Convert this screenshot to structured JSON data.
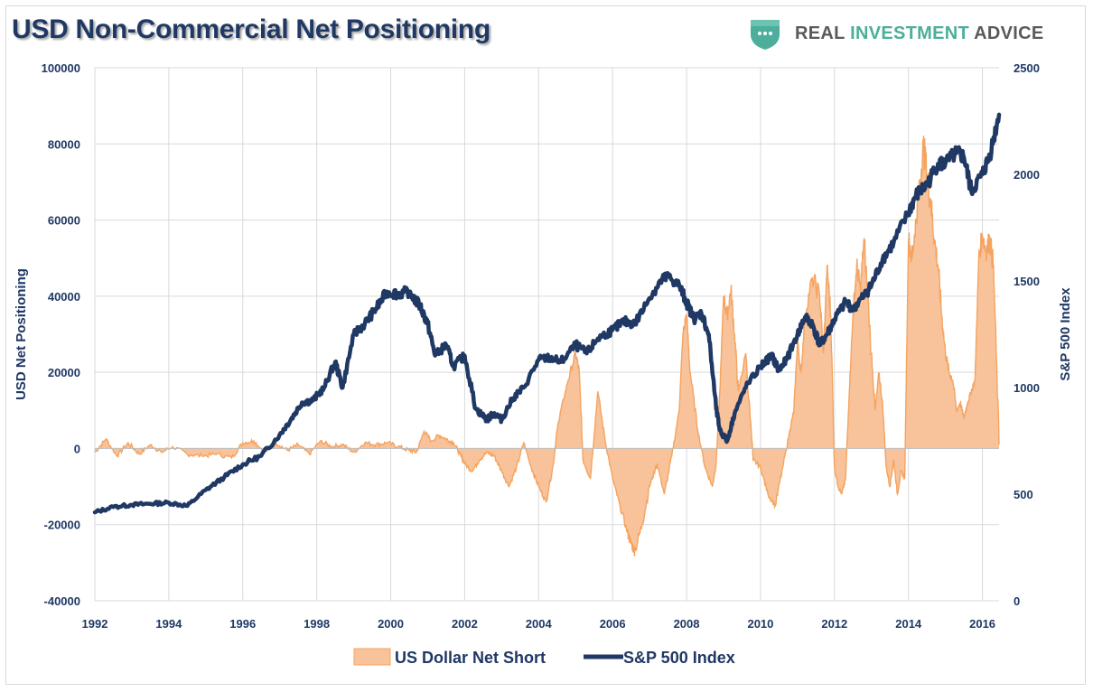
{
  "title": "USD Non-Commercial Net Positioning",
  "brand": {
    "name_part1": "REAL ",
    "name_part2": "INVESTMENT",
    "name_part3": " ADVICE",
    "logo_icon": "shield-dots-icon",
    "accent_color": "#4cae9b"
  },
  "colors": {
    "sp500": "#1f3864",
    "usd": "#f4a460",
    "usd_fill": "#f8c29a",
    "grid": "#d9d9d9",
    "text": "#1f3864"
  },
  "chart_data": {
    "type": "line+area",
    "title": "USD Non-Commercial Net Positioning",
    "xlabel": "",
    "ylabel_left": "USD Net Positioning",
    "ylabel_right": "S&P 500 Index",
    "xlim": [
      1992,
      2016.45
    ],
    "ylim_left": [
      -40000,
      100000
    ],
    "ylim_right": [
      0,
      2500
    ],
    "x_ticks": [
      1992,
      1994,
      1996,
      1998,
      2000,
      2002,
      2004,
      2006,
      2008,
      2010,
      2012,
      2014,
      2016
    ],
    "x_tick_labels": [
      "1992",
      "1994",
      "1996",
      "1998",
      "2000",
      "2002",
      "2004",
      "2006",
      "2008",
      "2010",
      "2012",
      "2014",
      "2016"
    ],
    "y_left_ticks": [
      -40000,
      -20000,
      0,
      20000,
      40000,
      60000,
      80000,
      100000
    ],
    "y_left_tick_labels": [
      "-40000",
      "-20000",
      "0",
      "20000",
      "40000",
      "60000",
      "80000",
      "100000"
    ],
    "y_right_ticks": [
      0,
      500,
      1000,
      1500,
      2000,
      2500
    ],
    "y_right_tick_labels": [
      "0",
      "500",
      "1000",
      "1500",
      "2000",
      "2500"
    ],
    "grid": true,
    "legend": {
      "position": "bottom-center",
      "entries": [
        "US Dollar Net Short",
        "S&P 500 Index"
      ]
    },
    "series": [
      {
        "name": "US Dollar Net Short",
        "type": "area",
        "axis": "left",
        "x": [
          1992,
          1992.3,
          1992.6,
          1992.9,
          1993.2,
          1993.5,
          1993.8,
          1994.1,
          1994.5,
          1994.9,
          1995.3,
          1995.7,
          1996,
          1996.3,
          1996.6,
          1996.9,
          1997.2,
          1997.5,
          1997.8,
          1998.1,
          1998.4,
          1998.7,
          1999,
          1999.3,
          1999.6,
          1999.9,
          2000.2,
          2000.5,
          2000.7,
          2000.9,
          2001.1,
          2001.3,
          2001.5,
          2001.7,
          2001.9,
          2002,
          2002.2,
          2002.4,
          2002.6,
          2002.8,
          2003,
          2003.2,
          2003.4,
          2003.6,
          2003.8,
          2004,
          2004.2,
          2004.4,
          2004.5,
          2004.6,
          2004.8,
          2005,
          2005.1,
          2005.2,
          2005.4,
          2005.6,
          2005.8,
          2006,
          2006.2,
          2006.4,
          2006.5,
          2006.6,
          2006.8,
          2007,
          2007.2,
          2007.4,
          2007.6,
          2007.8,
          2007.9,
          2008,
          2008.1,
          2008.3,
          2008.5,
          2008.7,
          2008.8,
          2008.9,
          2009,
          2009.1,
          2009.2,
          2009.3,
          2009.4,
          2009.6,
          2009.8,
          2010,
          2010.2,
          2010.4,
          2010.6,
          2010.8,
          2010.9,
          2011,
          2011.1,
          2011.2,
          2011.4,
          2011.6,
          2011.7,
          2011.8,
          2011.9,
          2012,
          2012.1,
          2012.2,
          2012.3,
          2012.4,
          2012.5,
          2012.6,
          2012.7,
          2012.8,
          2013,
          2013.1,
          2013.2,
          2013.3,
          2013.4,
          2013.5,
          2013.6,
          2013.7,
          2013.8,
          2013.9,
          2014,
          2014.1,
          2014.2,
          2014.3,
          2014.4,
          2014.5,
          2014.6,
          2014.7,
          2014.8,
          2014.9,
          2015,
          2015.1,
          2015.2,
          2015.3,
          2015.4,
          2015.5,
          2015.6,
          2015.7,
          2015.8,
          2015.9,
          2016,
          2016.1,
          2016.2,
          2016.3,
          2016.45
        ],
        "y": [
          -1000,
          2500,
          -2000,
          1500,
          -1500,
          1000,
          -1000,
          500,
          -1500,
          -2000,
          -1500,
          -2500,
          1500,
          2000,
          -1000,
          1500,
          -500,
          1000,
          -1500,
          2000,
          500,
          1000,
          -1000,
          1500,
          1000,
          1500,
          500,
          -500,
          -1000,
          4500,
          2000,
          3500,
          2500,
          1500,
          -2000,
          -4000,
          -6000,
          -3000,
          -1000,
          -2000,
          -6000,
          -10000,
          -5000,
          1500,
          -5000,
          -10000,
          -14000,
          -4000,
          5000,
          10000,
          18000,
          25000,
          20000,
          -3000,
          -8000,
          15000,
          2000,
          -8000,
          -15000,
          -22000,
          -25000,
          -27000,
          -20000,
          -10000,
          -4000,
          -12000,
          -2000,
          10000,
          30000,
          35000,
          20000,
          5000,
          -5000,
          -10000,
          -4000,
          15000,
          40000,
          35000,
          42000,
          30000,
          15000,
          25000,
          -3000,
          -5000,
          -12000,
          -15000,
          -5000,
          5000,
          10000,
          28000,
          20000,
          35000,
          45000,
          40000,
          25000,
          48000,
          35000,
          -5000,
          -10000,
          -12000,
          -8000,
          15000,
          35000,
          48000,
          42000,
          55000,
          25000,
          10000,
          20000,
          12000,
          -5000,
          -10000,
          -3000,
          -12000,
          -6000,
          -8000,
          55000,
          50000,
          60000,
          68000,
          80000,
          72000,
          65000,
          55000,
          48000,
          35000,
          25000,
          20000,
          18000,
          10000,
          12000,
          8000,
          12000,
          15000,
          18000,
          50000,
          56000,
          52000,
          55000,
          48000,
          1000
        ]
      },
      {
        "name": "S&P 500 Index",
        "type": "line",
        "axis": "right",
        "x": [
          1992,
          1992.5,
          1993,
          1993.5,
          1994,
          1994.5,
          1995,
          1995.5,
          1996,
          1996.5,
          1997,
          1997.3,
          1997.6,
          1997.9,
          1998.2,
          1998.5,
          1998.7,
          1999,
          1999.3,
          1999.6,
          1999.9,
          2000.2,
          2000.5,
          2000.8,
          2001,
          2001.2,
          2001.5,
          2001.7,
          2002,
          2002.3,
          2002.6,
          2002.8,
          2003,
          2003.3,
          2003.6,
          2004,
          2004.3,
          2004.6,
          2005,
          2005.3,
          2005.6,
          2006,
          2006.3,
          2006.6,
          2007,
          2007.3,
          2007.5,
          2007.8,
          2008,
          2008.2,
          2008.4,
          2008.6,
          2008.8,
          2008.9,
          2009.1,
          2009.3,
          2009.6,
          2010,
          2010.3,
          2010.5,
          2010.7,
          2011,
          2011.2,
          2011.4,
          2011.6,
          2011.8,
          2012,
          2012.3,
          2012.5,
          2012.8,
          2013,
          2013.3,
          2013.6,
          2014,
          2014.2,
          2014.5,
          2014.8,
          2015,
          2015.3,
          2015.5,
          2015.7,
          2016,
          2016.2,
          2016.45
        ],
        "y": [
          415,
          440,
          450,
          455,
          460,
          445,
          520,
          580,
          640,
          680,
          780,
          850,
          930,
          940,
          1000,
          1120,
          1000,
          1250,
          1300,
          1370,
          1450,
          1440,
          1450,
          1380,
          1300,
          1150,
          1200,
          1100,
          1150,
          900,
          850,
          880,
          850,
          950,
          1000,
          1130,
          1140,
          1120,
          1200,
          1160,
          1230,
          1270,
          1310,
          1300,
          1420,
          1500,
          1520,
          1480,
          1400,
          1320,
          1350,
          1250,
          900,
          800,
          750,
          880,
          1000,
          1100,
          1150,
          1080,
          1130,
          1250,
          1330,
          1300,
          1200,
          1250,
          1320,
          1400,
          1370,
          1430,
          1480,
          1600,
          1680,
          1820,
          1900,
          1950,
          2050,
          2050,
          2100,
          2080,
          1920,
          2000,
          2090,
          2280
        ]
      }
    ]
  },
  "legend": {
    "usd_label": "US Dollar Net Short",
    "sp_label": "S&P 500 Index"
  }
}
